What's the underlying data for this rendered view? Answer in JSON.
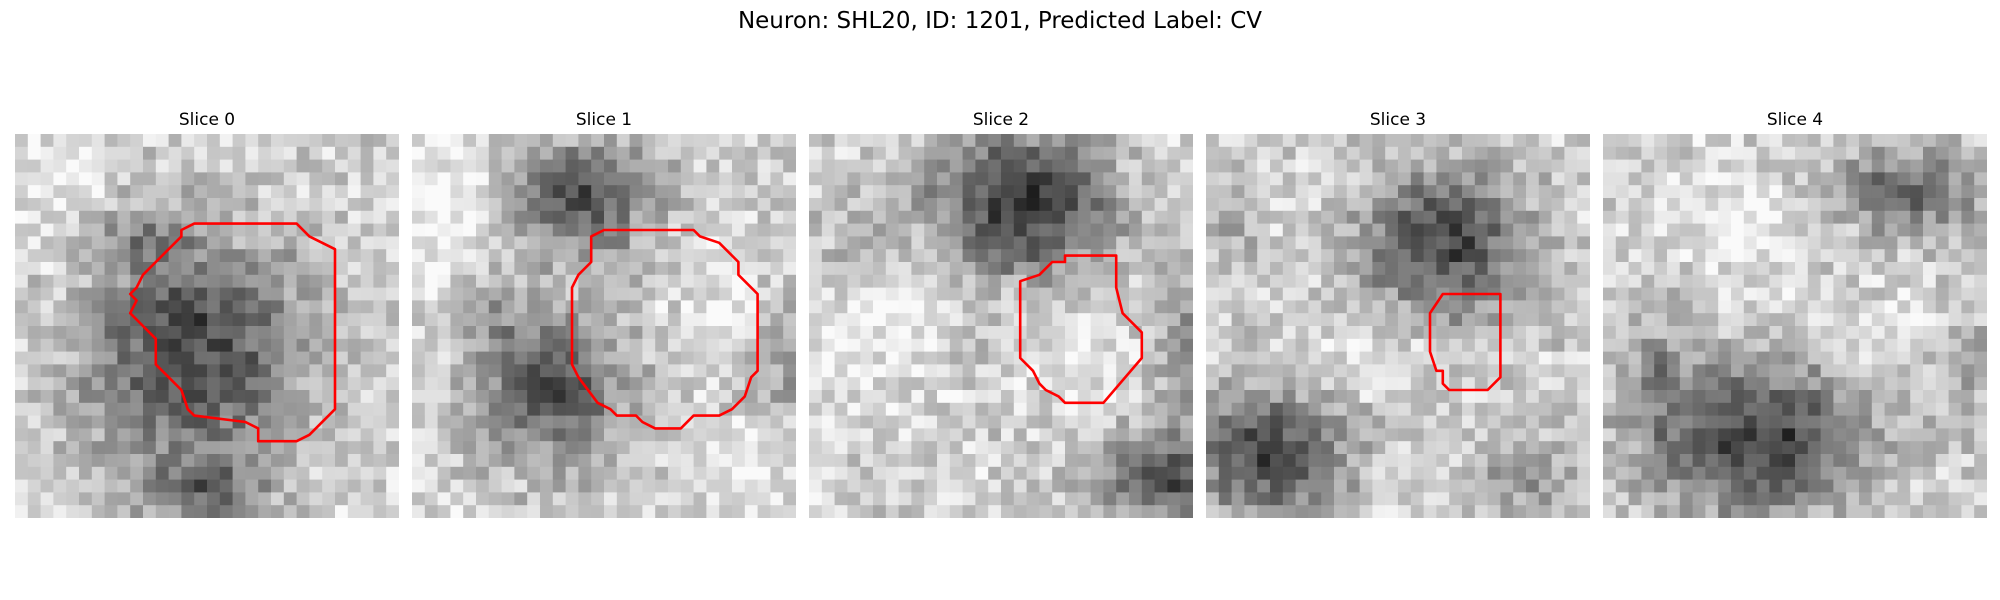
{
  "figure": {
    "title": "Neuron: SHL20, ID: 1201, Predicted Label: CV",
    "contour_color": "#ff0000"
  },
  "panels": [
    {
      "title": "Slice 0"
    },
    {
      "title": "Slice 1"
    },
    {
      "title": "Slice 2"
    },
    {
      "title": "Slice 3"
    },
    {
      "title": "Slice 4"
    }
  ]
}
